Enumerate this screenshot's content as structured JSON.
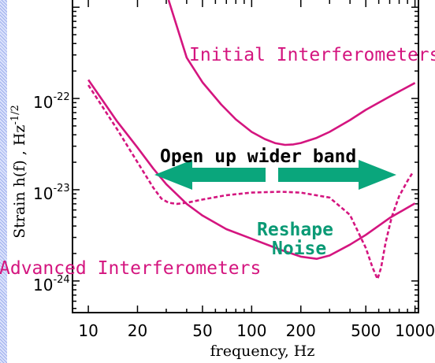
{
  "chart_data": {
    "type": "line",
    "xlabel": "frequency, Hz",
    "ylabel": "Strain h(f) , Hz",
    "ylabel_exponent": "-1/2",
    "x_scale": "log",
    "y_scale": "log",
    "xlim": [
      8,
      1050
    ],
    "ylim": [
      4.5e-25,
      1.2e-21
    ],
    "x_ticks": [
      10,
      20,
      50,
      100,
      200,
      500,
      1000
    ],
    "x_tick_labels": [
      "10",
      "20",
      "50",
      "100",
      "200",
      "500",
      "1000"
    ],
    "y_ticks": [
      1e-22,
      1e-23,
      1e-24
    ],
    "y_tick_labels": [
      {
        "base": "10",
        "exp": "-22"
      },
      {
        "base": "10",
        "exp": "-23"
      },
      {
        "base": "10",
        "exp": "-24"
      }
    ],
    "series": [
      {
        "label": "Initial Interferometers",
        "color": "#d4157f",
        "style": "solid",
        "x": [
          31,
          40,
          50,
          65,
          80,
          100,
          120,
          140,
          160,
          180,
          200,
          250,
          300,
          400,
          500,
          700,
          1000
        ],
        "y": [
          1.2e-21,
          2.8e-22,
          1.5e-22,
          8.6e-23,
          5.9e-23,
          4.3e-23,
          3.6e-23,
          3.23e-23,
          3.1e-23,
          3.14e-23,
          3.25e-23,
          3.7e-23,
          4.3e-23,
          5.8e-23,
          7.5e-23,
          1.05e-22,
          1.48e-22
        ]
      },
      {
        "label": "Advanced Interferometers",
        "color": "#d4157f",
        "style": "solid",
        "x": [
          10,
          12,
          15,
          20,
          25,
          30,
          40,
          50,
          70,
          100,
          150,
          200,
          250,
          300,
          400,
          500,
          700,
          1000
        ],
        "y": [
          1.6e-22,
          1e-22,
          5.6e-23,
          2.9e-23,
          1.7e-23,
          1.15e-23,
          7e-24,
          5.2e-24,
          3.7e-24,
          2.9e-24,
          2.2e-24,
          1.85e-24,
          1.75e-24,
          1.9e-24,
          2.5e-24,
          3.2e-24,
          4.9e-24,
          7.1e-24
        ]
      },
      {
        "label": "Reshape Noise",
        "color": "#d4157f",
        "style": "dashed",
        "x": [
          10,
          12,
          15,
          20,
          25,
          28,
          31,
          35,
          40,
          50,
          70,
          100,
          150,
          200,
          300,
          400,
          500,
          550,
          590,
          620,
          660,
          720,
          800,
          900,
          960
        ],
        "y": [
          1.4e-22,
          8.5e-23,
          4.6e-23,
          2e-23,
          1.05e-23,
          8e-24,
          7.2e-24,
          7e-24,
          7.2e-24,
          7.8e-24,
          8.7e-24,
          9.3e-24,
          9.5e-24,
          9.3e-24,
          8.2e-24,
          5.3e-24,
          2.3e-24,
          1.4e-24,
          1.05e-24,
          1.4e-24,
          2.6e-24,
          5e-24,
          8.5e-24,
          1.25e-23,
          1.5e-23
        ]
      }
    ],
    "annotations": [
      {
        "text": "Initial Interferometers",
        "color": "#d4157f"
      },
      {
        "text": "Advanced Interferometers",
        "color": "#d4157f"
      },
      {
        "text": "Open up wider band",
        "color": "#000000"
      },
      {
        "text": "Reshape",
        "color": "#0a9a75"
      },
      {
        "text": "Noise",
        "color": "#0a9a75"
      }
    ],
    "arrow_color": "#0aa67c",
    "grid": false,
    "legend": "none"
  }
}
